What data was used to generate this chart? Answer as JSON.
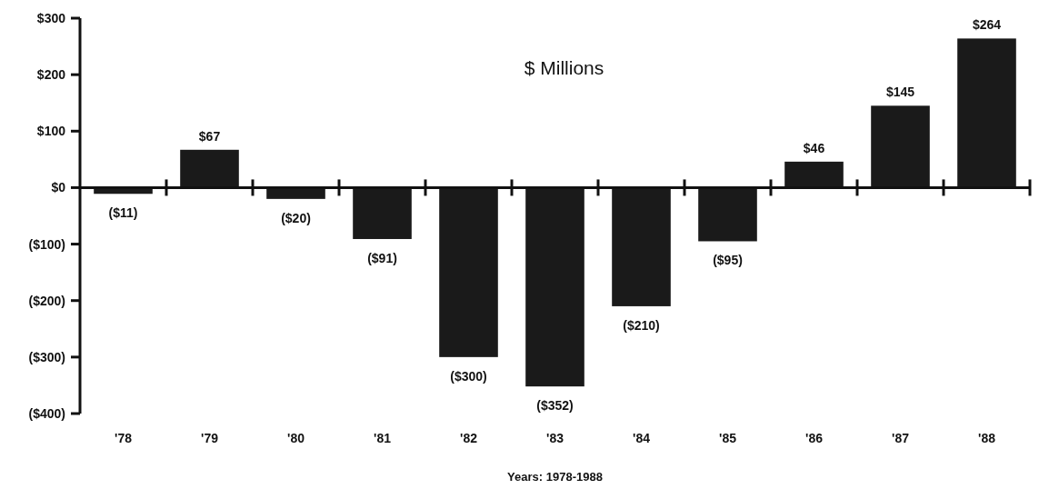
{
  "chart_data": {
    "type": "bar",
    "title": "$ Millions",
    "xlabel": "Years: 1978-1988",
    "categories": [
      "'78",
      "'79",
      "'80",
      "'81",
      "'82",
      "'83",
      "'84",
      "'85",
      "'86",
      "'87",
      "'88"
    ],
    "values": [
      -11,
      67,
      -20,
      -91,
      -300,
      -352,
      -210,
      -95,
      46,
      145,
      264
    ],
    "color": "#1a1a1a",
    "value_labels": [
      "($11)",
      "$67",
      "($20)",
      "($91)",
      "($300)",
      "($352)",
      "($210)",
      "($95)",
      "$46",
      "$145",
      "$264"
    ],
    "ylim": [
      -400,
      300
    ],
    "yticks": [
      {
        "value": 300,
        "label": "$300"
      },
      {
        "value": 200,
        "label": "$200"
      },
      {
        "value": 100,
        "label": "$100"
      },
      {
        "value": 0,
        "label": "$0"
      },
      {
        "value": -100,
        "label": "($100)"
      },
      {
        "value": -200,
        "label": "($200)"
      },
      {
        "value": -300,
        "label": "($300)"
      },
      {
        "value": -400,
        "label": "($400)"
      }
    ],
    "legend": false
  }
}
